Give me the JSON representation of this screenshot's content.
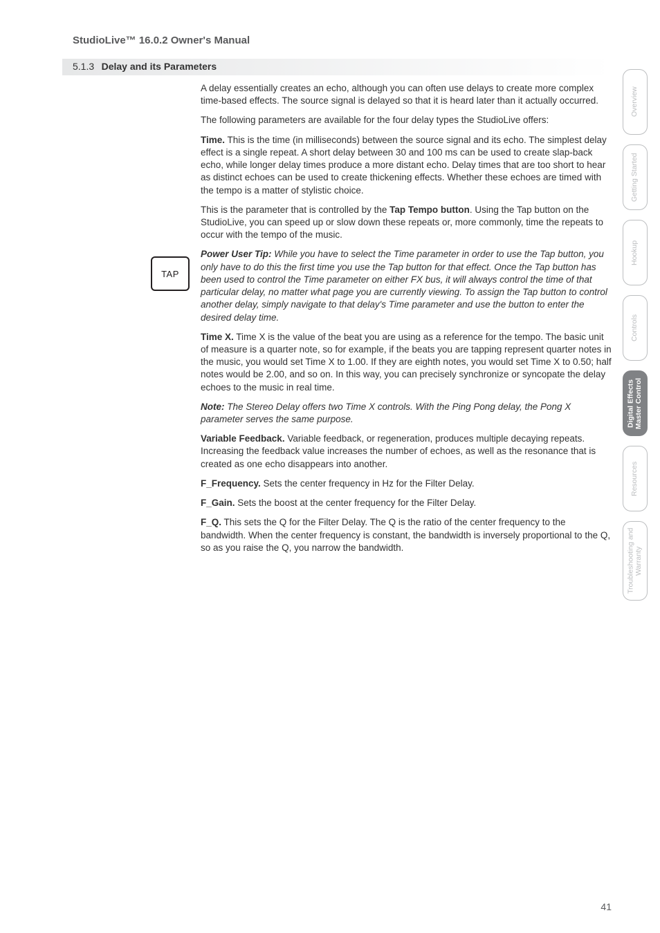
{
  "header": "StudioLive™ 16.0.2 Owner's Manual",
  "section": {
    "number": "5.1.3",
    "title": "Delay and its Parameters"
  },
  "para1": "A delay essentially creates an echo, although you can often use delays to create more complex time-based effects. The source signal is delayed so that it is heard later than it actually occurred.",
  "para2": "The following parameters are available for the four delay types the StudioLive offers:",
  "time_label": "Time.",
  "time_body": " This is the time (in milliseconds) between the source signal and its echo. The simplest delay effect is a single repeat. A short delay between 30 and 100 ms can be used to create slap-back echo, while longer delay times produce a more distant echo. Delay times that are too short to hear as distinct echoes can be used to create thickening effects. Whether these echoes are timed with the tempo is a matter of stylistic choice.",
  "tap_intro": "This is the parameter that is controlled by the ",
  "tap_bold": "Tap Tempo button",
  "tap_rest": ". Using the Tap button on the StudioLive, you can speed up or slow down these repeats or, more commonly, time the repeats to occur with the tempo of the music.",
  "tip_label": "Power User Tip:",
  "tip_body": " While you have to select the Time parameter in order to use the Tap button, you only have to do this the first time you use the Tap button for that effect. Once the Tap button has been used to control the Time parameter on either FX bus, it will always control the time of that particular delay, no matter what page you are currently viewing. To assign the Tap button to control another delay, simply navigate to that delay's Time parameter and use the button to enter the desired delay time.",
  "timex_label": "Time X.",
  "timex_body": " Time X is the value of the beat you are using as a reference for the tempo. The basic unit of measure is a quarter note, so for example, if the beats you are tapping represent quarter notes in the music, you would set Time X to 1.00. If they are eighth notes, you would set Time X to 0.50; half notes would be 2.00, and so on. In this way, you can precisely synchronize or syncopate the delay echoes to the music in real time.",
  "note_label": "Note:",
  "note_body": " The Stereo Delay offers two Time X controls. With the Ping Pong delay, the Pong X parameter serves the same purpose.",
  "vf_label": "Variable Feedback.",
  "vf_body": " Variable feedback, or regeneration, produces multiple decaying repeats. Increasing the feedback value increases the number of echoes, as well as the resonance that is created as one echo disappears into another.",
  "ff_label": "F_Frequency.",
  "ff_body": " Sets the center frequency in Hz for the Filter Delay.",
  "fg_label": "F_Gain.",
  "fg_body": " Sets the boost at the center frequency for the Filter Delay.",
  "fq_label": "F_Q.",
  "fq_body": " This sets the Q for the Filter Delay. The Q is the ratio of the center frequency to the bandwidth. When the center frequency is constant, the bandwidth is inversely proportional to the Q, so as you raise the Q, you narrow the bandwidth.",
  "tap_button": "TAP",
  "tabs": {
    "overview": "Overview",
    "getting_started": "Getting Started",
    "hookup": "Hookup",
    "controls": "Controls",
    "digital_effects": "Digital Effects\nMaster Control",
    "resources": "Resources",
    "troubleshooting": "Troubleshooting\nand Warranty"
  },
  "page_number": "41"
}
